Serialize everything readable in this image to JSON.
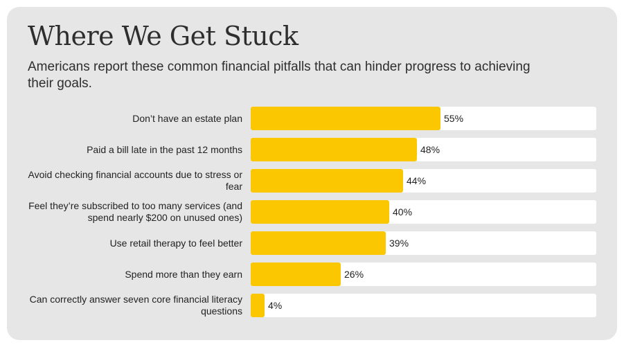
{
  "title": "Where We Get Stuck",
  "subtitle": "Americans report these common financial pitfalls that can hinder progress to achieving their goals.",
  "colors": {
    "bar": "#fbc700",
    "track": "#ffffff",
    "card": "#e6e6e6",
    "text": "#222222"
  },
  "chart_data": {
    "type": "bar",
    "orientation": "horizontal",
    "title": "Where We Get Stuck",
    "subtitle": "Americans report these common financial pitfalls that can hinder progress to achieving their goals.",
    "categories": [
      "Don’t have an estate plan",
      "Paid a bill late in the past 12 months",
      "Avoid checking financial accounts due to stress or fear",
      "Feel they’re subscribed to too many services (and spend nearly $200 on unused ones)",
      "Use retail therapy to feel better",
      "Spend more than they earn",
      "Can correctly answer seven core financial literacy questions"
    ],
    "values": [
      55,
      48,
      44,
      40,
      39,
      26,
      4
    ],
    "data_labels": [
      "55%",
      "48%",
      "44%",
      "40%",
      "39%",
      "26%",
      "4%"
    ],
    "unit": "%",
    "xlim": [
      0,
      100
    ],
    "grid": false,
    "legend": "none"
  }
}
